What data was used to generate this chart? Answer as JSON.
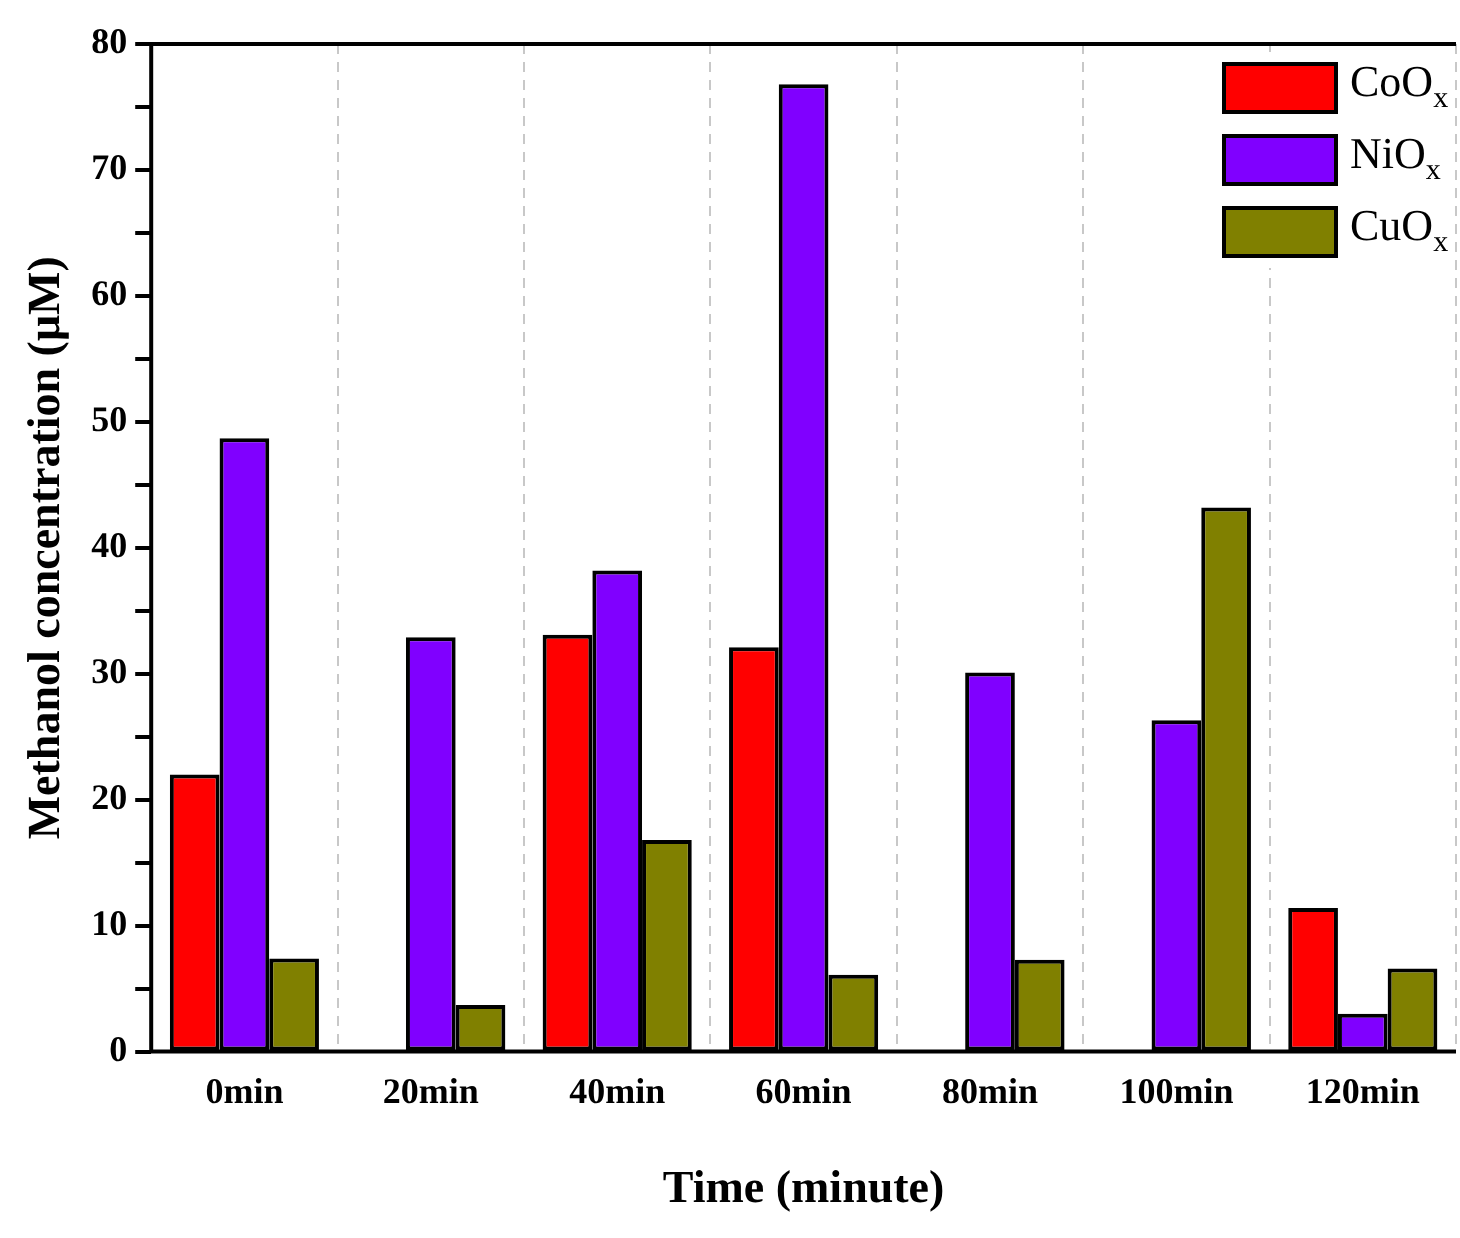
{
  "chart_data": {
    "type": "bar",
    "xlabel": "Time (minute)",
    "ylabel": "Methanol concentration (μM)",
    "categories": [
      "0min",
      "20min",
      "40min",
      "60min",
      "80min",
      "100min",
      "120min"
    ],
    "series": [
      {
        "name": "CoO$_{x}$",
        "color": "#ff0000",
        "values": [
          22.0,
          0,
          33.1,
          32.1,
          0,
          0,
          11.4
        ]
      },
      {
        "name": "NiO$_{x}$",
        "color": "#8000ff",
        "values": [
          48.7,
          32.9,
          38.2,
          76.8,
          30.1,
          26.3,
          3.0
        ]
      },
      {
        "name": "CuO$_{x}$",
        "color": "#808000",
        "values": [
          7.4,
          3.7,
          16.8,
          6.1,
          7.3,
          43.2,
          6.6
        ]
      }
    ],
    "ylim": [
      0,
      80
    ],
    "yticks": [
      0,
      {
        "value": 5,
        "label": null
      },
      10,
      {
        "value": 15,
        "label": null
      },
      20,
      {
        "value": 25,
        "label": null
      },
      30,
      {
        "value": 35,
        "label": null
      },
      40,
      {
        "value": 45,
        "label": null
      },
      50,
      {
        "value": 55,
        "label": null
      },
      60,
      {
        "value": 65,
        "label": null
      },
      70,
      {
        "value": 75,
        "label": null
      },
      80
    ],
    "grid": "x",
    "legend": "top right"
  }
}
